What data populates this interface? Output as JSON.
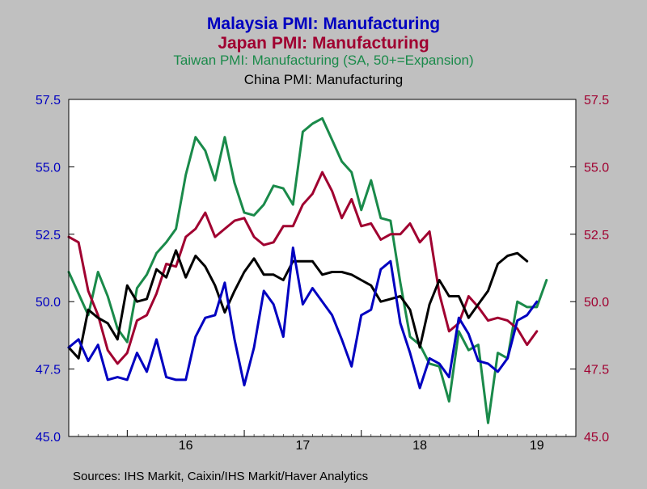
{
  "chart_data": {
    "type": "line",
    "titles": [
      {
        "text": "Malaysia PMI: Manufacturing",
        "color": "#0000c0",
        "bold": true
      },
      {
        "text": "Japan PMI: Manufacturing",
        "color": "#a00030",
        "bold": true
      },
      {
        "text": "Taiwan PMI: Manufacturing  (SA, 50+=Expansion)",
        "color": "#1a8a4a",
        "bold": false
      },
      {
        "text": "China PMI: Manufacturing",
        "color": "#000000",
        "bold": false
      }
    ],
    "source": "Sources:  IHS Markit, Caixin/IHS Markit/Haver Analytics",
    "x_axis": {
      "start": "2015-07",
      "end": "2019-11",
      "tick_labels": [
        {
          "label": "16",
          "x": "2016-07"
        },
        {
          "label": "17",
          "x": "2017-07"
        },
        {
          "label": "18",
          "x": "2018-07"
        },
        {
          "label": "19",
          "x": "2019-07"
        }
      ]
    },
    "y_left": {
      "range": [
        45.0,
        57.5
      ],
      "ticks": [
        "45.0",
        "47.5",
        "50.0",
        "52.5",
        "55.0",
        "57.5"
      ],
      "color": "#0000c0"
    },
    "y_right": {
      "range": [
        45.0,
        57.5
      ],
      "ticks": [
        "45.0",
        "47.5",
        "50.0",
        "52.5",
        "55.0",
        "57.5"
      ],
      "color": "#a00030"
    },
    "grid": false,
    "legend": "none",
    "series": [
      {
        "name": "Taiwan PMI: Manufacturing",
        "color": "#1a8a4a",
        "start": "2015-07",
        "values": [
          51.1,
          50.3,
          49.5,
          51.1,
          50.2,
          49.0,
          48.5,
          50.5,
          51.0,
          51.8,
          52.2,
          52.7,
          54.7,
          56.1,
          55.6,
          54.5,
          56.1,
          54.4,
          53.3,
          53.2,
          53.6,
          54.3,
          54.2,
          53.6,
          56.3,
          56.6,
          56.8,
          56.0,
          55.2,
          54.8,
          53.4,
          54.5,
          53.1,
          53.0,
          50.7,
          48.7,
          48.4,
          47.7,
          47.6,
          46.3,
          48.9,
          48.2,
          48.4,
          45.5,
          48.1,
          47.9,
          50.0,
          49.8,
          49.8,
          50.8
        ]
      },
      {
        "name": "Japan PMI: Manufacturing",
        "color": "#a00030",
        "start": "2015-07",
        "values": [
          52.4,
          52.2,
          50.4,
          49.5,
          48.2,
          47.7,
          48.1,
          49.3,
          49.5,
          50.3,
          51.4,
          51.3,
          52.4,
          52.7,
          53.3,
          52.4,
          52.7,
          53.0,
          53.1,
          52.4,
          52.1,
          52.2,
          52.8,
          52.8,
          53.6,
          54.0,
          54.8,
          54.1,
          53.1,
          53.8,
          52.8,
          52.9,
          52.3,
          52.5,
          52.5,
          52.9,
          52.2,
          52.6,
          50.3,
          48.9,
          49.2,
          50.2,
          49.8,
          49.3,
          49.4,
          49.3,
          49.0,
          48.4,
          48.9
        ]
      },
      {
        "name": "China PMI: Manufacturing",
        "color": "#000000",
        "start": "2015-07",
        "values": [
          48.3,
          47.9,
          49.7,
          49.4,
          49.2,
          48.6,
          50.6,
          50.0,
          50.1,
          51.2,
          50.9,
          51.9,
          50.9,
          51.7,
          51.3,
          50.6,
          49.6,
          50.4,
          51.1,
          51.6,
          51.0,
          51.0,
          50.8,
          51.5,
          51.5,
          51.5,
          51.0,
          51.1,
          51.1,
          51.0,
          50.8,
          50.6,
          50.0,
          50.1,
          50.2,
          49.7,
          48.3,
          49.9,
          50.8,
          50.2,
          50.2,
          49.4,
          49.9,
          50.4,
          51.4,
          51.7,
          51.8,
          51.5
        ]
      },
      {
        "name": "Malaysia PMI: Manufacturing",
        "color": "#0000c0",
        "start": "2015-07",
        "values": [
          48.3,
          48.6,
          47.8,
          48.4,
          47.1,
          47.2,
          47.1,
          48.1,
          47.4,
          48.6,
          47.2,
          47.1,
          47.1,
          48.7,
          49.4,
          49.5,
          50.7,
          48.6,
          46.9,
          48.3,
          50.4,
          49.9,
          48.7,
          52.0,
          49.9,
          50.5,
          50.0,
          49.5,
          48.6,
          47.6,
          49.5,
          49.7,
          51.2,
          51.5,
          49.2,
          48.1,
          46.8,
          47.9,
          47.7,
          47.2,
          49.4,
          48.8,
          47.8,
          47.7,
          47.4,
          47.9,
          49.3,
          49.5,
          50.0
        ]
      }
    ]
  }
}
